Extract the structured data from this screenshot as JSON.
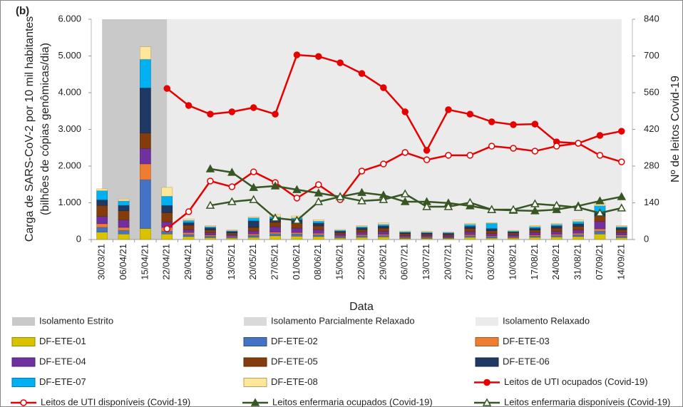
{
  "chart_data": {
    "type": "bar",
    "panel_label": "(b)",
    "x_label": "Data",
    "y_label": [
      "Carga de SARS-CoV-2 por 10 mil habitantes",
      "(bilhões de cópias genômicas/dia)"
    ],
    "y2_label": "Nº de leitos Covid-19",
    "categories": [
      "30/03/21",
      "06/04/21",
      "15/04/21",
      "22/04/21",
      "29/04/21",
      "06/05/21",
      "13/05/21",
      "20/05/21",
      "27/05/21",
      "01/06/21",
      "08/06/21",
      "15/06/21",
      "22/06/21",
      "29/06/21",
      "06/07/21",
      "13/07/21",
      "20/07/21",
      "27/07/21",
      "03/08/21",
      "10/08/21",
      "17/08/21",
      "24/08/21",
      "31/08/21",
      "07/09/21",
      "14/09/21"
    ],
    "ylim": [
      0,
      6000
    ],
    "yticks": [
      0,
      {
        "value": 1000,
        "label": "1.000"
      },
      {
        "value": 2000,
        "label": "2.000"
      },
      {
        "value": 3000,
        "label": "3.000"
      },
      {
        "value": 4000,
        "label": "4.000"
      },
      {
        "value": 5000,
        "label": "5.000"
      },
      {
        "value": 6000,
        "label": "6.000"
      }
    ],
    "y2lim": [
      0,
      840
    ],
    "y2ticks": [
      0,
      140,
      280,
      420,
      560,
      700,
      840
    ],
    "stacked": true,
    "regions": [
      {
        "name": "Isolamento Estrito",
        "color": "#c9c9c9",
        "from": "30/03/21",
        "to": "22/04/21"
      },
      {
        "name": "Isolamento Parcialmente Relaxado",
        "color": "#d9d9d9"
      },
      {
        "name": "Isolamento Relaxado",
        "color": "#ebebeb",
        "from": "22/04/21",
        "to": "14/09/21"
      }
    ],
    "series": [
      {
        "name": "DF-ETE-01",
        "color": "#d9c300",
        "values": [
          200,
          150,
          300,
          150,
          80,
          50,
          40,
          60,
          100,
          90,
          80,
          40,
          60,
          70,
          30,
          30,
          30,
          60,
          40,
          40,
          60,
          70,
          80,
          150,
          50
        ]
      },
      {
        "name": "DF-ETE-02",
        "color": "#4472c4",
        "values": [
          130,
          100,
          1330,
          80,
          60,
          40,
          30,
          50,
          60,
          60,
          50,
          30,
          40,
          40,
          20,
          20,
          20,
          40,
          40,
          20,
          30,
          40,
          50,
          80,
          40
        ]
      },
      {
        "name": "DF-ETE-03",
        "color": "#ed7d31",
        "values": [
          100,
          80,
          430,
          100,
          50,
          30,
          20,
          40,
          40,
          40,
          40,
          20,
          30,
          30,
          20,
          20,
          10,
          30,
          20,
          20,
          30,
          30,
          40,
          60,
          30
        ]
      },
      {
        "name": "DF-ETE-04",
        "color": "#7030a0",
        "values": [
          200,
          200,
          420,
          150,
          80,
          60,
          40,
          80,
          150,
          120,
          100,
          50,
          70,
          80,
          40,
          40,
          40,
          80,
          60,
          50,
          70,
          80,
          90,
          200,
          70
        ]
      },
      {
        "name": "DF-ETE-05",
        "color": "#843c0c",
        "values": [
          300,
          250,
          420,
          250,
          120,
          80,
          50,
          100,
          120,
          130,
          100,
          50,
          70,
          90,
          50,
          40,
          40,
          90,
          80,
          50,
          70,
          90,
          100,
          150,
          80
        ]
      },
      {
        "name": "DF-ETE-06",
        "color": "#1f3864",
        "values": [
          150,
          150,
          1230,
          200,
          70,
          60,
          40,
          180,
          100,
          100,
          80,
          40,
          50,
          60,
          30,
          30,
          30,
          60,
          60,
          30,
          50,
          60,
          70,
          100,
          50
        ]
      },
      {
        "name": "DF-ETE-07",
        "color": "#00b0f0",
        "values": [
          250,
          120,
          780,
          250,
          60,
          30,
          20,
          80,
          50,
          50,
          50,
          20,
          30,
          40,
          20,
          20,
          20,
          50,
          140,
          20,
          40,
          40,
          60,
          180,
          30
        ]
      },
      {
        "name": "DF-ETE-08",
        "color": "#ffe699",
        "values": [
          50,
          50,
          340,
          240,
          40,
          30,
          20,
          30,
          60,
          50,
          40,
          20,
          30,
          40,
          20,
          20,
          10,
          30,
          20,
          20,
          30,
          30,
          40,
          80,
          30
        ]
      },
      {
        "name": "Leitos de UTI ocupados (Covid-19)",
        "type": "line",
        "axis": "y2",
        "color": "#e60000",
        "marker": "circle",
        "marker_fill": "solid",
        "values": [
          null,
          null,
          null,
          576,
          511,
          478,
          487,
          503,
          478,
          704,
          698,
          674,
          633,
          579,
          487,
          340,
          495,
          478,
          449,
          438,
          440,
          372,
          367,
          397,
          413
        ]
      },
      {
        "name": "Leitos de UTI disponíveis (Covid-19)",
        "type": "line",
        "axis": "y2",
        "color": "#e60000",
        "marker": "circle",
        "marker_fill": "open",
        "values": [
          null,
          null,
          null,
          41,
          106,
          223,
          201,
          258,
          217,
          158,
          209,
          152,
          261,
          288,
          332,
          304,
          321,
          321,
          356,
          348,
          337,
          356,
          367,
          321,
          296
        ]
      },
      {
        "name": "Leitos enfermaria ocupados (Covid-19)",
        "type": "line",
        "axis": "y2",
        "color": "#375623",
        "marker": "triangle",
        "marker_fill": "solid",
        "values": [
          null,
          null,
          null,
          null,
          null,
          269,
          256,
          198,
          204,
          190,
          177,
          163,
          179,
          169,
          144,
          144,
          139,
          128,
          114,
          111,
          109,
          114,
          128,
          147,
          163
        ]
      },
      {
        "name": "Leitos enfermaria disponíveis (Covid-19)",
        "type": "line",
        "axis": "y2",
        "color": "#375623",
        "marker": "triangle",
        "marker_fill": "open",
        "values": [
          null,
          null,
          null,
          null,
          null,
          130,
          144,
          152,
          82,
          73,
          144,
          163,
          147,
          152,
          174,
          125,
          125,
          141,
          114,
          114,
          136,
          130,
          122,
          101,
          120
        ]
      }
    ]
  }
}
